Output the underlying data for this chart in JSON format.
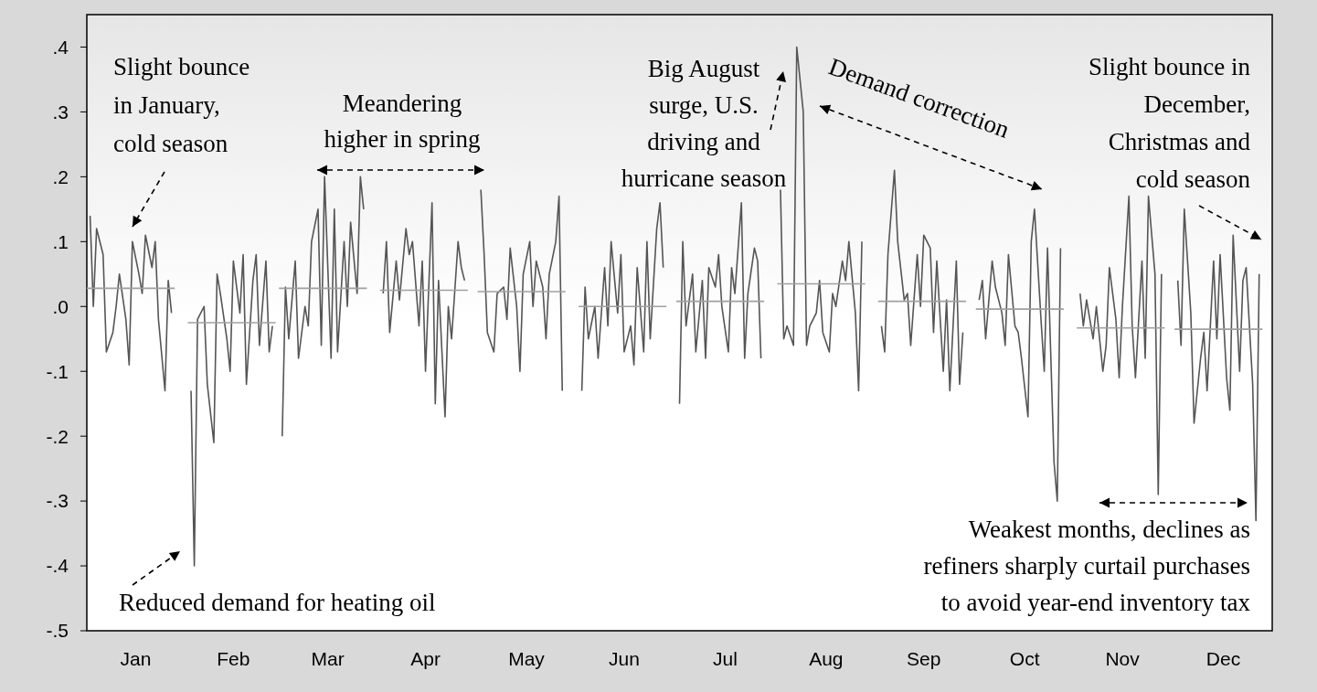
{
  "chart_data": {
    "type": "line",
    "xlim": [
      "--01-01",
      "--12-31"
    ],
    "ylim": [
      -0.5,
      0.45
    ],
    "xticks": [
      {
        "value": "--01-16",
        "label": "Jan"
      },
      {
        "value": "--02-15",
        "label": "Feb"
      },
      {
        "value": "--03-16",
        "label": "Mar"
      },
      {
        "value": "--04-15",
        "label": "Apr"
      },
      {
        "value": "--05-16",
        "label": "May"
      },
      {
        "value": "--06-15",
        "label": "Jun"
      },
      {
        "value": "--07-16",
        "label": "Jul"
      },
      {
        "value": "--08-16",
        "label": "Aug"
      },
      {
        "value": "--09-15",
        "label": "Sep"
      },
      {
        "value": "--10-16",
        "label": "Oct"
      },
      {
        "value": "--11-15",
        "label": "Nov"
      },
      {
        "value": "--12-16",
        "label": "Dec"
      }
    ],
    "yticks": [
      {
        "value": 0.4,
        "label": ".4"
      },
      {
        "value": 0.3,
        "label": ".3"
      },
      {
        "value": 0.2,
        "label": ".2"
      },
      {
        "value": 0.1,
        "label": ".1"
      },
      {
        "value": 0,
        "label": ".0"
      },
      {
        "value": -0.1,
        "label": "-.1"
      },
      {
        "value": -0.2,
        "label": "-.2"
      },
      {
        "value": -0.3,
        "label": "-.3"
      },
      {
        "value": -0.4,
        "label": "-.4"
      },
      {
        "value": -0.5,
        "label": "-.5"
      }
    ],
    "series": [
      {
        "color": "#555555",
        "x": [
          "--01-02",
          "--01-03",
          "--01-04",
          "--01-06",
          "--01-07",
          "--01-09",
          "--01-10",
          "--01-11",
          "--01-13",
          "--01-14",
          "--01-15",
          "--01-17",
          "--01-18",
          "--01-19",
          "--01-21",
          "--01-22",
          "--01-23",
          "--01-25",
          "--01-26",
          "--01-27"
        ],
        "values": [
          0.14,
          0.0,
          0.12,
          0.08,
          -0.07,
          -0.04,
          0.0,
          0.05,
          -0.02,
          -0.09,
          0.1,
          0.05,
          0.02,
          0.11,
          0.06,
          0.1,
          -0.02,
          -0.13,
          0.04,
          -0.01
        ]
      },
      {
        "color": "#555555",
        "x": [
          "--02-02",
          "--02-03",
          "--02-04",
          "--02-06",
          "--02-07",
          "--02-09",
          "--02-10",
          "--02-11",
          "--02-13",
          "--02-14",
          "--02-15",
          "--02-17",
          "--02-18",
          "--02-19",
          "--02-21",
          "--02-22",
          "--02-23",
          "--02-25",
          "--02-26",
          "--02-27"
        ],
        "values": [
          -0.13,
          -0.4,
          -0.02,
          0.0,
          -0.12,
          -0.21,
          0.05,
          0.02,
          -0.05,
          -0.1,
          0.07,
          -0.01,
          0.08,
          -0.12,
          0.04,
          0.08,
          -0.06,
          0.07,
          -0.07,
          -0.03
        ]
      },
      {
        "color": "#555555",
        "x": [
          "--03-02",
          "--03-03",
          "--03-04",
          "--03-06",
          "--03-07",
          "--03-09",
          "--03-10",
          "--03-11",
          "--03-13",
          "--03-14",
          "--03-15",
          "--03-17",
          "--03-18",
          "--03-19",
          "--03-21",
          "--03-22",
          "--03-23",
          "--03-25",
          "--03-26",
          "--03-27"
        ],
        "values": [
          -0.2,
          0.03,
          -0.05,
          0.07,
          -0.08,
          0.0,
          -0.03,
          0.1,
          0.15,
          -0.06,
          0.2,
          -0.08,
          0.15,
          -0.07,
          0.1,
          0.0,
          0.13,
          0.02,
          0.2,
          0.15
        ]
      },
      {
        "color": "#555555",
        "x": [
          "--04-02",
          "--04-03",
          "--04-04",
          "--04-06",
          "--04-07",
          "--04-09",
          "--04-10",
          "--04-11",
          "--04-13",
          "--04-14",
          "--04-15",
          "--04-17",
          "--04-18",
          "--04-19",
          "--04-21",
          "--04-22",
          "--04-23",
          "--04-25",
          "--04-26",
          "--04-27"
        ],
        "values": [
          0.02,
          0.1,
          -0.04,
          0.07,
          0.01,
          0.12,
          0.08,
          0.1,
          -0.03,
          0.07,
          -0.1,
          0.16,
          -0.15,
          0.04,
          -0.17,
          0.0,
          -0.05,
          0.1,
          0.06,
          0.04
        ]
      },
      {
        "color": "#555555",
        "x": [
          "--05-02",
          "--05-03",
          "--05-04",
          "--05-06",
          "--05-07",
          "--05-09",
          "--05-10",
          "--05-11",
          "--05-13",
          "--05-14",
          "--05-15",
          "--05-17",
          "--05-18",
          "--05-19",
          "--05-21",
          "--05-22",
          "--05-23",
          "--05-25",
          "--05-26",
          "--05-27"
        ],
        "values": [
          0.18,
          0.08,
          -0.04,
          -0.07,
          0.02,
          0.03,
          -0.02,
          0.09,
          0.0,
          -0.1,
          0.05,
          0.1,
          0.0,
          0.07,
          0.03,
          -0.05,
          0.05,
          0.1,
          0.17,
          -0.13
        ]
      },
      {
        "color": "#555555",
        "x": [
          "--06-02",
          "--06-03",
          "--06-04",
          "--06-06",
          "--06-07",
          "--06-09",
          "--06-10",
          "--06-11",
          "--06-13",
          "--06-14",
          "--06-15",
          "--06-17",
          "--06-18",
          "--06-19",
          "--06-21",
          "--06-22",
          "--06-23",
          "--06-25",
          "--06-26",
          "--06-27"
        ],
        "values": [
          -0.13,
          0.03,
          -0.05,
          0.0,
          -0.08,
          0.06,
          -0.03,
          0.1,
          -0.01,
          0.08,
          -0.07,
          -0.03,
          -0.09,
          0.06,
          -0.07,
          0.1,
          -0.05,
          0.12,
          0.16,
          0.06
        ]
      },
      {
        "color": "#555555",
        "x": [
          "--07-02",
          "--07-03",
          "--07-04",
          "--07-06",
          "--07-07",
          "--07-09",
          "--07-10",
          "--07-11",
          "--07-13",
          "--07-14",
          "--07-15",
          "--07-17",
          "--07-18",
          "--07-19",
          "--07-21",
          "--07-22",
          "--07-23",
          "--07-25",
          "--07-26",
          "--07-27"
        ],
        "values": [
          -0.15,
          0.1,
          -0.03,
          0.05,
          -0.07,
          0.04,
          -0.08,
          0.06,
          0.03,
          0.08,
          0.0,
          -0.07,
          0.06,
          0.02,
          0.16,
          -0.08,
          0.02,
          0.09,
          0.07,
          -0.08
        ]
      },
      {
        "color": "#555555",
        "x": [
          "--08-02",
          "--08-03",
          "--08-04",
          "--08-06",
          "--08-07",
          "--08-09",
          "--08-10",
          "--08-11",
          "--08-13",
          "--08-14",
          "--08-15",
          "--08-17",
          "--08-18",
          "--08-19",
          "--08-21",
          "--08-22",
          "--08-23",
          "--08-25",
          "--08-26",
          "--08-27"
        ],
        "values": [
          0.18,
          -0.05,
          -0.03,
          -0.06,
          0.4,
          0.3,
          -0.06,
          -0.03,
          -0.01,
          0.04,
          -0.04,
          -0.07,
          0.02,
          0.0,
          0.07,
          0.04,
          0.1,
          -0.01,
          -0.13,
          0.1
        ]
      },
      {
        "color": "#555555",
        "x": [
          "--09-02",
          "--09-03",
          "--09-04",
          "--09-06",
          "--09-07",
          "--09-09",
          "--09-10",
          "--09-11",
          "--09-13",
          "--09-14",
          "--09-15",
          "--09-17",
          "--09-18",
          "--09-19",
          "--09-21",
          "--09-22",
          "--09-23",
          "--09-25",
          "--09-26",
          "--09-27"
        ],
        "values": [
          -0.03,
          -0.07,
          0.08,
          0.21,
          0.1,
          0.01,
          0.02,
          -0.06,
          0.08,
          0.0,
          0.11,
          0.09,
          -0.04,
          0.07,
          -0.1,
          0.01,
          -0.13,
          0.07,
          -0.12,
          -0.04
        ]
      },
      {
        "color": "#555555",
        "x": [
          "--10-02",
          "--10-03",
          "--10-04",
          "--10-06",
          "--10-07",
          "--10-09",
          "--10-10",
          "--10-11",
          "--10-13",
          "--10-14",
          "--10-15",
          "--10-17",
          "--10-18",
          "--10-19",
          "--10-21",
          "--10-22",
          "--10-23",
          "--10-25",
          "--10-26",
          "--10-27"
        ],
        "values": [
          0.01,
          0.04,
          -0.05,
          0.07,
          0.03,
          -0.01,
          -0.06,
          0.08,
          -0.03,
          -0.04,
          -0.08,
          -0.17,
          0.1,
          0.15,
          -0.02,
          -0.1,
          0.09,
          -0.24,
          -0.3,
          0.09
        ]
      },
      {
        "color": "#555555",
        "x": [
          "--11-02",
          "--11-03",
          "--11-04",
          "--11-06",
          "--11-07",
          "--11-09",
          "--11-10",
          "--11-11",
          "--11-13",
          "--11-14",
          "--11-15",
          "--11-17",
          "--11-18",
          "--11-19",
          "--11-21",
          "--11-22",
          "--11-23",
          "--11-25",
          "--11-26",
          "--11-27"
        ],
        "values": [
          0.02,
          -0.03,
          0.01,
          -0.05,
          0.0,
          -0.1,
          -0.06,
          0.06,
          -0.02,
          -0.11,
          0.0,
          0.17,
          -0.03,
          -0.11,
          0.07,
          -0.08,
          0.17,
          0.05,
          -0.29,
          0.05
        ]
      },
      {
        "color": "#555555",
        "x": [
          "--12-02",
          "--12-03",
          "--12-04",
          "--12-06",
          "--12-07",
          "--12-09",
          "--12-10",
          "--12-11",
          "--12-13",
          "--12-14",
          "--12-15",
          "--12-17",
          "--12-18",
          "--12-19",
          "--12-21",
          "--12-22",
          "--12-23",
          "--12-25",
          "--12-26",
          "--12-27"
        ],
        "values": [
          0.04,
          -0.06,
          0.15,
          -0.01,
          -0.18,
          -0.08,
          -0.04,
          -0.13,
          0.07,
          -0.05,
          0.08,
          -0.11,
          -0.16,
          0.11,
          -0.1,
          0.04,
          0.06,
          -0.12,
          -0.33,
          0.05
        ]
      },
      {
        "color": "#a0a0a0",
        "x": [
          "--01-01",
          "--01-28"
        ],
        "values": [
          0.028,
          0.028
        ]
      },
      {
        "color": "#a0a0a0",
        "x": [
          "--02-01",
          "--02-28"
        ],
        "values": [
          -0.025,
          -0.025
        ]
      },
      {
        "color": "#a0a0a0",
        "x": [
          "--03-01",
          "--03-28"
        ],
        "values": [
          0.028,
          0.028
        ]
      },
      {
        "color": "#a0a0a0",
        "x": [
          "--04-01",
          "--04-28"
        ],
        "values": [
          0.025,
          0.025
        ]
      },
      {
        "color": "#a0a0a0",
        "x": [
          "--05-01",
          "--05-28"
        ],
        "values": [
          0.023,
          0.023
        ]
      },
      {
        "color": "#a0a0a0",
        "x": [
          "--06-01",
          "--06-28"
        ],
        "values": [
          0.0,
          0.0
        ]
      },
      {
        "color": "#a0a0a0",
        "x": [
          "--07-01",
          "--07-28"
        ],
        "values": [
          0.008,
          0.008
        ]
      },
      {
        "color": "#a0a0a0",
        "x": [
          "--08-01",
          "--08-28"
        ],
        "values": [
          0.035,
          0.035
        ]
      },
      {
        "color": "#a0a0a0",
        "x": [
          "--09-01",
          "--09-28"
        ],
        "values": [
          0.008,
          0.008
        ]
      },
      {
        "color": "#a0a0a0",
        "x": [
          "--10-01",
          "--10-28"
        ],
        "values": [
          -0.004,
          -0.004
        ]
      },
      {
        "color": "#a0a0a0",
        "x": [
          "--11-01",
          "--11-28"
        ],
        "values": [
          -0.033,
          -0.033
        ]
      },
      {
        "color": "#a0a0a0",
        "x": [
          "--12-01",
          "--12-28"
        ],
        "values": [
          -0.035,
          -0.035
        ]
      }
    ],
    "annotations": [
      "Slight bounce\nin January,\ncold season",
      "Meandering\nhigher in spring",
      "Big August\nsurge, U.S.\ndriving and\nhurricane season",
      "Demand correction",
      "Slight bounce in\nDecember,\nChristmas and\ncold season",
      "Reduced demand for heating oil",
      "Weakest months, declines as\nrefiners sharply curtail purchases\nto avoid year-end inventory tax"
    ]
  }
}
